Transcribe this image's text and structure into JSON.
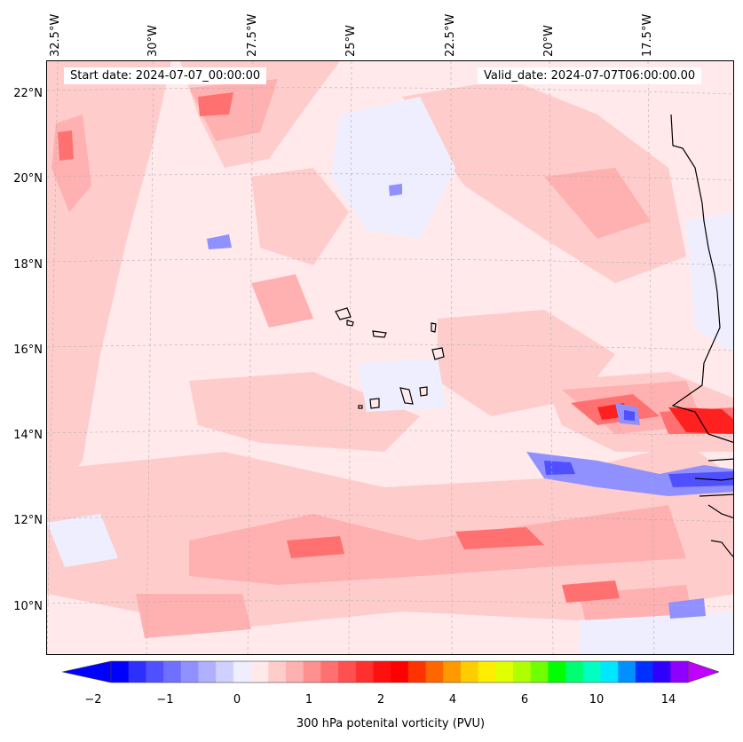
{
  "start_date": "Start date: 2024-07-07_00:00:00",
  "valid_date": "Valid_date: 2024-07-07T06:00:00.00",
  "lon_labels": [
    "32.5°W",
    "30°W",
    "27.5°W",
    "25°W",
    "22.5°W",
    "20°W",
    "17.5°W"
  ],
  "lat_labels": [
    "22°N",
    "20°N",
    "18°N",
    "16°N",
    "14°N",
    "12°N",
    "10°N"
  ],
  "colorbar": {
    "label": "300 hPa potenital vorticity (PVU)",
    "tick_labels": [
      "−2",
      "−1",
      "0",
      "1",
      "2",
      "4",
      "6",
      "10",
      "14"
    ],
    "colors": [
      "#0000ff",
      "#2e2eff",
      "#5050ff",
      "#7070ff",
      "#9090ff",
      "#b0b0ff",
      "#d0d0ff",
      "#eeeeff",
      "#ffe9ea",
      "#ffcccc",
      "#ffb0b0",
      "#ff9090",
      "#ff7070",
      "#ff5050",
      "#ff3030",
      "#ff1010",
      "#ff0000",
      "#ff3300",
      "#ff6600",
      "#ff9900",
      "#ffcc00",
      "#ffee00",
      "#e0ff00",
      "#b0ff00",
      "#70ff00",
      "#00ff00",
      "#00ff70",
      "#00ffc0",
      "#00e8ff",
      "#0090ff",
      "#0030ff",
      "#3000ff",
      "#9000ff"
    ],
    "under_color": "#0000ff",
    "over_color": "#c000ff"
  }
}
